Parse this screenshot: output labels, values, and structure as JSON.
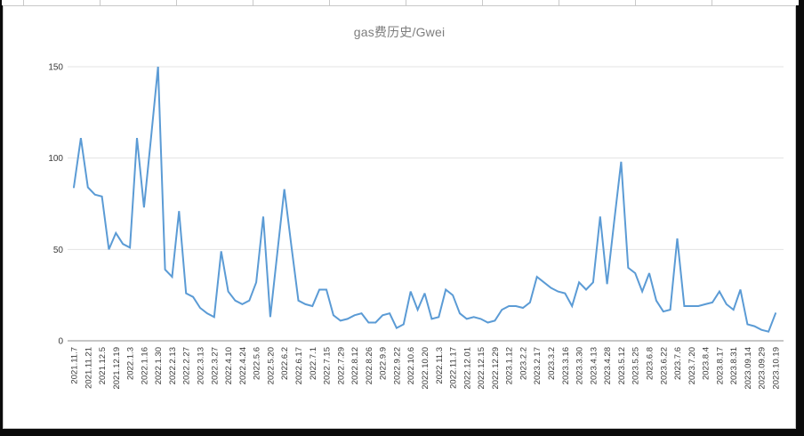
{
  "title": "gas费历史/Gwei",
  "panel": {
    "background": "#ffffff",
    "border_color": "#c7c7c7",
    "frame_color": "#0b0b0b"
  },
  "chart_data": {
    "type": "line",
    "title": "gas费历史/Gwei",
    "unit": "Gwei",
    "ylim": [
      0,
      150
    ],
    "yticks": [
      0,
      50,
      100,
      150
    ],
    "grid": true,
    "legend": "none",
    "line_color": "#5b9bd5",
    "grid_color": "#e3e3e3",
    "axis_color": "#8c8c8c",
    "tick_label_color": "#3a3a3a",
    "x_tick_labels": [
      "2021.11.7",
      "2021.11.21",
      "2021.12.5",
      "2021.12.19",
      "2022.1.3",
      "2022.1.16",
      "2022.1.30",
      "2022.2.13",
      "2022.2.27",
      "2022.3.13",
      "2022.3.27",
      "2022.4.10",
      "2022.4.24",
      "2022.5.6",
      "2022.5.20",
      "2022.6.2",
      "2022.6.17",
      "2022.7.1",
      "2022.7.15",
      "2022.7.29",
      "2022.8.12",
      "2022.8.26",
      "2022.9.9",
      "2022.9.22",
      "2022.10.6",
      "2022.10.20",
      "2022.11.3",
      "2022.11.17",
      "2022.12.01",
      "2022.12.15",
      "2022.12.29",
      "2023.1.12",
      "2023.2.2",
      "2023.2.17",
      "2023.3.2",
      "2023.3.16",
      "2023.3.30",
      "2023.4.13",
      "2023.4.28",
      "2023.5.12",
      "2023.5.25",
      "2023.6.8",
      "2023.6.22",
      "2023.7.6",
      "2023.7.20",
      "2023.8.4",
      "2023.8.17",
      "2023.8.31",
      "2023.09.14",
      "2023.09.29",
      "2023.10.19"
    ],
    "points_per_label": 2,
    "values": [
      84,
      111,
      84,
      80,
      79,
      50,
      59,
      53,
      51,
      111,
      73,
      111,
      150,
      39,
      35,
      71,
      26,
      24,
      18,
      15,
      13,
      49,
      27,
      22,
      20,
      22,
      32,
      68,
      13,
      48,
      83,
      52,
      22,
      20,
      19,
      28,
      28,
      14,
      11,
      12,
      14,
      15,
      10,
      10,
      14,
      15,
      7,
      9,
      27,
      17,
      26,
      12,
      13,
      28,
      25,
      15,
      12,
      13,
      12,
      10,
      11,
      17,
      19,
      19,
      18,
      21,
      35,
      32,
      29,
      27,
      26,
      19,
      32,
      28,
      32,
      68,
      31,
      65,
      98,
      40,
      37,
      27,
      37,
      22,
      16,
      17,
      56,
      19,
      19,
      19,
      20,
      21,
      27,
      20,
      17,
      28,
      9,
      8,
      6,
      5,
      15
    ]
  }
}
